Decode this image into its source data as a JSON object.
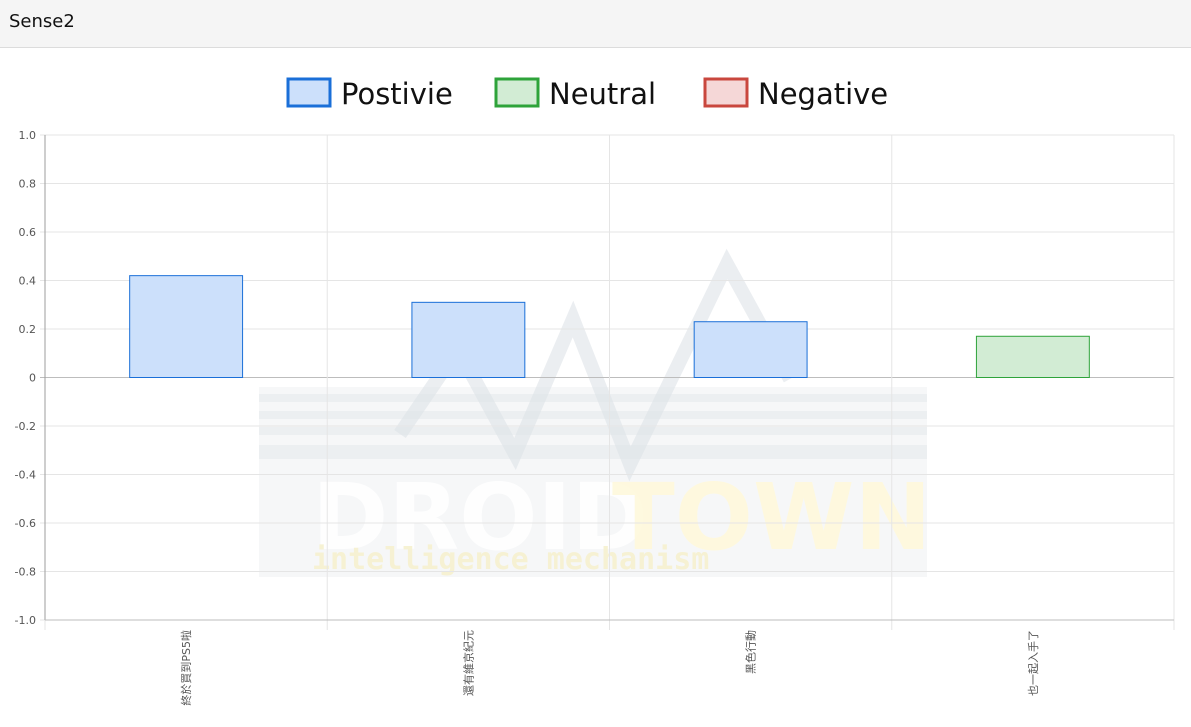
{
  "header": {
    "title": "Sense2"
  },
  "watermark": {
    "brand_left": "DROID",
    "brand_right": "TOWN",
    "tagline": "intelligence mechanism"
  },
  "colors": {
    "positive_fill": "#cce0fb",
    "positive_stroke": "#1a6fd8",
    "neutral_fill": "#d2ecd4",
    "neutral_stroke": "#2ea33a",
    "negative_fill": "#f5d7d7",
    "negative_stroke": "#c9473e"
  },
  "chart_data": {
    "type": "bar",
    "title": "",
    "xlabel": "",
    "ylabel": "",
    "ylim": [
      -1.0,
      1.0
    ],
    "yticks": [
      "1.0",
      "0.8",
      "0.6",
      "0.4",
      "0.2",
      "0",
      "-0.2",
      "-0.4",
      "-0.6",
      "-0.8",
      "-1.0"
    ],
    "grid": true,
    "legend_position": "top-center",
    "legend": [
      {
        "label": "Postivie",
        "sentiment": "positive"
      },
      {
        "label": "Neutral",
        "sentiment": "neutral"
      },
      {
        "label": "Negative",
        "sentiment": "negative"
      }
    ],
    "categories": [
      "終於買到PS5啦",
      "還有維京紀元",
      "黑色行動",
      "也一起入手了"
    ],
    "values": [
      0.42,
      0.31,
      0.23,
      0.17
    ],
    "sentiments": [
      "positive",
      "positive",
      "positive",
      "neutral"
    ]
  }
}
